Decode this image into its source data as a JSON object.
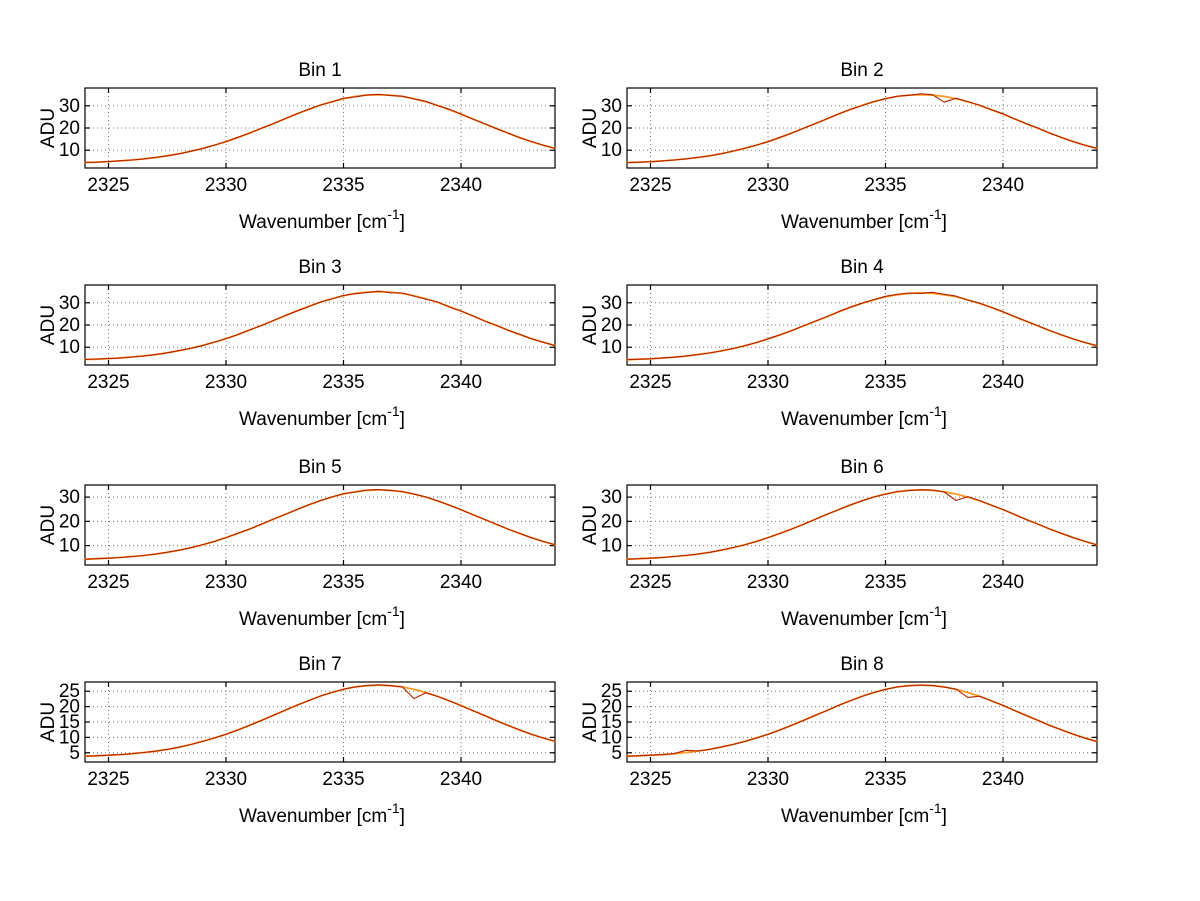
{
  "figure": {
    "background": "#ffffff"
  },
  "labels": {
    "xlabel_main": "Wavenumber [cm",
    "xlabel_sup": "-1",
    "xlabel_close": "]"
  },
  "colors": {
    "data_line": "#b22200",
    "fit_line": "#ff9922",
    "grid": "#7a7a7a",
    "axis": "#000000"
  },
  "x_values": [
    2324,
    2324.5,
    2325,
    2325.5,
    2326,
    2326.5,
    2327,
    2327.5,
    2328,
    2328.5,
    2329,
    2329.5,
    2330,
    2330.5,
    2331,
    2331.5,
    2332,
    2332.5,
    2333,
    2333.5,
    2334,
    2334.5,
    2335,
    2335.5,
    2336,
    2336.5,
    2337,
    2337.5,
    2338,
    2338.5,
    2339,
    2339.5,
    2340,
    2340.5,
    2341,
    2341.5,
    2342,
    2342.5,
    2343,
    2343.5,
    2344
  ],
  "chart_data": [
    {
      "type": "line",
      "title": "Bin 1",
      "xlabel": "Wavenumber [cm^-1]",
      "ylabel": "ADU",
      "xlim": [
        2324,
        2344
      ],
      "ylim": [
        2,
        38
      ],
      "xticks": [
        2325,
        2330,
        2335,
        2340
      ],
      "yticks": [
        10,
        20,
        30
      ],
      "grid": true,
      "x_start": 2324,
      "x_step": 0.5,
      "n_points": 41,
      "series": [
        {
          "name": "fit",
          "color": "#ff9922",
          "values": [
            4.5,
            4.6,
            4.9,
            5.2,
            5.6,
            6.1,
            6.7,
            7.5,
            8.4,
            9.5,
            10.8,
            12.2,
            13.9,
            15.7,
            17.7,
            19.8,
            21.9,
            24.1,
            26.3,
            28.3,
            30.2,
            31.8,
            33.2,
            34.2,
            34.8,
            35.0,
            34.8,
            34.2,
            33.2,
            31.8,
            30.2,
            28.3,
            26.3,
            24.1,
            21.9,
            19.8,
            17.7,
            15.7,
            13.9,
            12.2,
            10.8
          ]
        },
        {
          "name": "data",
          "color": "#b22200",
          "values": [
            4.5,
            4.6,
            4.9,
            5.3,
            5.6,
            6.1,
            6.8,
            7.5,
            8.4,
            9.5,
            10.7,
            12.3,
            13.9,
            15.8,
            17.7,
            19.9,
            21.9,
            24.2,
            26.3,
            28.4,
            30.3,
            31.7,
            33.4,
            34.0,
            34.9,
            35.1,
            34.6,
            34.3,
            33.1,
            32.0,
            30.1,
            28.4,
            26.2,
            24.0,
            22.0,
            19.7,
            17.7,
            15.6,
            13.9,
            12.3,
            10.8
          ]
        }
      ]
    },
    {
      "type": "line",
      "title": "Bin 2",
      "xlabel": "Wavenumber [cm^-1]",
      "ylabel": "ADU",
      "xlim": [
        2324,
        2344
      ],
      "ylim": [
        2,
        38
      ],
      "xticks": [
        2325,
        2330,
        2335,
        2340
      ],
      "yticks": [
        10,
        20,
        30
      ],
      "grid": true,
      "x_start": 2324,
      "x_step": 0.5,
      "n_points": 41,
      "series": [
        {
          "name": "fit",
          "color": "#ff9922",
          "values": [
            4.5,
            4.6,
            4.9,
            5.2,
            5.6,
            6.1,
            6.7,
            7.5,
            8.4,
            9.5,
            10.8,
            12.2,
            13.9,
            15.7,
            17.7,
            19.8,
            21.9,
            24.1,
            26.3,
            28.3,
            30.2,
            31.8,
            33.2,
            34.2,
            34.8,
            35.0,
            34.8,
            34.2,
            33.2,
            31.8,
            30.2,
            28.3,
            26.3,
            24.1,
            21.9,
            19.8,
            17.7,
            15.7,
            13.9,
            12.2,
            10.8
          ]
        },
        {
          "name": "data",
          "color": "#b22200",
          "values": [
            4.4,
            4.6,
            4.8,
            5.2,
            5.6,
            6.1,
            6.8,
            7.4,
            8.4,
            9.6,
            10.8,
            12.3,
            13.8,
            15.8,
            17.6,
            19.8,
            22.0,
            24.1,
            26.3,
            28.4,
            30.1,
            31.9,
            33.2,
            34.3,
            34.7,
            35.4,
            35.0,
            31.6,
            33.4,
            31.9,
            30.3,
            28.2,
            26.4,
            24.0,
            21.9,
            19.9,
            17.6,
            15.7,
            13.8,
            12.2,
            10.8
          ]
        }
      ]
    },
    {
      "type": "line",
      "title": "Bin 3",
      "xlabel": "Wavenumber [cm^-1]",
      "ylabel": "ADU",
      "xlim": [
        2324,
        2344
      ],
      "ylim": [
        2,
        38
      ],
      "xticks": [
        2325,
        2330,
        2335,
        2340
      ],
      "yticks": [
        10,
        20,
        30
      ],
      "grid": true,
      "x_start": 2324,
      "x_step": 0.5,
      "n_points": 41,
      "series": [
        {
          "name": "fit",
          "color": "#ff9922",
          "values": [
            4.5,
            4.6,
            4.9,
            5.2,
            5.6,
            6.1,
            6.7,
            7.5,
            8.4,
            9.5,
            10.8,
            12.2,
            13.9,
            15.7,
            17.7,
            19.8,
            21.9,
            24.1,
            26.3,
            28.3,
            30.2,
            31.8,
            33.2,
            34.2,
            34.8,
            35.0,
            34.8,
            34.2,
            33.2,
            31.8,
            30.2,
            28.3,
            26.3,
            24.1,
            21.9,
            19.8,
            17.7,
            15.7,
            13.9,
            12.2,
            10.8
          ]
        },
        {
          "name": "data",
          "color": "#b22200",
          "values": [
            4.5,
            4.7,
            4.9,
            5.1,
            5.6,
            6.0,
            6.7,
            7.5,
            8.5,
            9.5,
            10.7,
            12.3,
            13.9,
            15.7,
            17.8,
            19.7,
            22.0,
            24.2,
            26.2,
            28.2,
            30.3,
            31.7,
            33.3,
            34.1,
            34.6,
            35.2,
            34.5,
            34.4,
            33.0,
            31.6,
            30.4,
            28.1,
            26.3,
            24.2,
            21.8,
            19.8,
            17.6,
            15.8,
            13.8,
            12.2,
            10.7
          ]
        }
      ]
    },
    {
      "type": "line",
      "title": "Bin 4",
      "xlabel": "Wavenumber [cm^-1]",
      "ylabel": "ADU",
      "xlim": [
        2324,
        2344
      ],
      "ylim": [
        2,
        38
      ],
      "xticks": [
        2325,
        2330,
        2335,
        2340
      ],
      "yticks": [
        10,
        20,
        30
      ],
      "grid": true,
      "x_start": 2324,
      "x_step": 0.5,
      "n_points": 41,
      "series": [
        {
          "name": "fit",
          "color": "#ff9922",
          "values": [
            4.4,
            4.6,
            4.8,
            5.1,
            5.5,
            6.0,
            6.7,
            7.4,
            8.3,
            9.4,
            10.6,
            12.1,
            13.7,
            15.5,
            17.4,
            19.5,
            21.6,
            23.7,
            25.9,
            27.9,
            29.7,
            31.3,
            32.7,
            33.6,
            34.2,
            34.5,
            34.2,
            33.6,
            32.7,
            31.3,
            29.7,
            27.9,
            25.9,
            23.7,
            21.6,
            19.5,
            17.4,
            15.5,
            13.7,
            12.1,
            10.6
          ]
        },
        {
          "name": "data",
          "color": "#b22200",
          "values": [
            4.4,
            4.6,
            4.8,
            5.2,
            5.5,
            6.0,
            6.7,
            7.4,
            8.3,
            9.4,
            10.7,
            12.1,
            13.8,
            15.6,
            17.5,
            19.6,
            21.7,
            23.8,
            26.0,
            28.0,
            29.8,
            31.4,
            32.9,
            33.8,
            34.4,
            34.2,
            34.7,
            33.8,
            33.0,
            31.2,
            29.8,
            27.9,
            26.0,
            23.8,
            21.7,
            19.6,
            17.5,
            15.5,
            13.7,
            12.1,
            10.7
          ]
        }
      ]
    },
    {
      "type": "line",
      "title": "Bin 5",
      "xlabel": "Wavenumber [cm^-1]",
      "ylabel": "ADU",
      "xlim": [
        2324,
        2344
      ],
      "ylim": [
        2,
        35
      ],
      "xticks": [
        2325,
        2330,
        2335,
        2340
      ],
      "yticks": [
        10,
        20,
        30
      ],
      "grid": true,
      "x_start": 2324,
      "x_step": 0.5,
      "n_points": 41,
      "series": [
        {
          "name": "fit",
          "color": "#ff9922",
          "values": [
            4.4,
            4.6,
            4.8,
            5.1,
            5.5,
            5.9,
            6.5,
            7.2,
            8.1,
            9.1,
            10.3,
            11.7,
            13.3,
            15.0,
            16.8,
            18.8,
            20.8,
            22.8,
            24.8,
            26.7,
            28.5,
            30.0,
            31.3,
            32.2,
            32.8,
            33.0,
            32.8,
            32.2,
            31.3,
            30.0,
            28.5,
            26.7,
            24.8,
            22.8,
            20.8,
            18.8,
            16.8,
            15.0,
            13.3,
            11.7,
            10.3
          ]
        },
        {
          "name": "data",
          "color": "#b22200",
          "values": [
            4.4,
            4.6,
            4.8,
            5.1,
            5.5,
            5.9,
            6.5,
            7.3,
            8.1,
            9.1,
            10.4,
            11.7,
            13.3,
            15.1,
            16.8,
            18.8,
            20.9,
            22.8,
            24.8,
            26.8,
            28.5,
            30.1,
            31.4,
            32.1,
            32.9,
            33.1,
            32.7,
            32.3,
            31.2,
            30.1,
            28.5,
            26.7,
            24.8,
            22.8,
            20.8,
            18.8,
            16.8,
            15.0,
            13.2,
            11.7,
            10.4
          ]
        }
      ]
    },
    {
      "type": "line",
      "title": "Bin 6",
      "xlabel": "Wavenumber [cm^-1]",
      "ylabel": "ADU",
      "xlim": [
        2324,
        2344
      ],
      "ylim": [
        2,
        35
      ],
      "xticks": [
        2325,
        2330,
        2335,
        2340
      ],
      "yticks": [
        10,
        20,
        30
      ],
      "grid": true,
      "x_start": 2324,
      "x_step": 0.5,
      "n_points": 41,
      "series": [
        {
          "name": "fit",
          "color": "#ff9922",
          "values": [
            4.4,
            4.6,
            4.8,
            5.1,
            5.5,
            5.9,
            6.5,
            7.2,
            8.1,
            9.1,
            10.3,
            11.7,
            13.3,
            15.0,
            16.8,
            18.8,
            20.8,
            22.8,
            24.8,
            26.7,
            28.5,
            30.0,
            31.3,
            32.2,
            32.8,
            33.0,
            32.8,
            32.2,
            31.3,
            30.0,
            28.5,
            26.7,
            24.8,
            22.8,
            20.8,
            18.8,
            16.8,
            15.0,
            13.3,
            11.7,
            10.3
          ]
        },
        {
          "name": "data",
          "color": "#b22200",
          "values": [
            4.4,
            4.6,
            4.8,
            5.1,
            5.5,
            5.9,
            6.5,
            7.2,
            8.1,
            9.2,
            10.3,
            11.7,
            13.3,
            15.0,
            16.8,
            18.7,
            20.8,
            22.9,
            24.8,
            26.8,
            28.5,
            30.1,
            31.2,
            32.3,
            32.7,
            33.0,
            32.9,
            32.1,
            28.6,
            30.2,
            28.6,
            26.7,
            24.9,
            22.8,
            20.7,
            18.8,
            16.8,
            15.0,
            13.2,
            11.7,
            10.3
          ]
        }
      ]
    },
    {
      "type": "line",
      "title": "Bin 7",
      "xlabel": "Wavenumber [cm^-1]",
      "ylabel": "ADU",
      "xlim": [
        2324,
        2344
      ],
      "ylim": [
        2,
        28
      ],
      "xticks": [
        2325,
        2330,
        2335,
        2340
      ],
      "yticks": [
        5,
        10,
        15,
        20,
        25
      ],
      "grid": true,
      "x_start": 2324,
      "x_step": 0.5,
      "n_points": 41,
      "series": [
        {
          "name": "fit",
          "color": "#ff9922",
          "values": [
            3.9,
            4.0,
            4.2,
            4.4,
            4.7,
            5.1,
            5.5,
            6.1,
            6.8,
            7.7,
            8.7,
            9.8,
            11.0,
            12.4,
            13.9,
            15.5,
            17.1,
            18.7,
            20.4,
            21.9,
            23.4,
            24.6,
            25.6,
            26.4,
            26.8,
            27.0,
            26.8,
            26.4,
            25.6,
            24.6,
            23.4,
            21.9,
            20.4,
            18.7,
            17.1,
            15.5,
            13.9,
            12.4,
            11.0,
            9.8,
            8.7
          ]
        },
        {
          "name": "data",
          "color": "#b22200",
          "values": [
            3.9,
            4.0,
            4.2,
            4.4,
            4.7,
            5.1,
            5.5,
            6.1,
            6.8,
            7.7,
            8.7,
            9.8,
            11.0,
            12.4,
            13.9,
            15.5,
            17.1,
            18.8,
            20.4,
            21.9,
            23.4,
            24.6,
            25.7,
            26.4,
            26.9,
            27.1,
            26.8,
            26.4,
            22.6,
            24.5,
            23.3,
            21.9,
            20.3,
            18.7,
            17.1,
            15.4,
            13.9,
            12.4,
            11.0,
            9.8,
            8.7
          ]
        }
      ]
    },
    {
      "type": "line",
      "title": "Bin 8",
      "xlabel": "Wavenumber [cm^-1]",
      "ylabel": "ADU",
      "xlim": [
        2324,
        2344
      ],
      "ylim": [
        2,
        28
      ],
      "xticks": [
        2325,
        2330,
        2335,
        2340
      ],
      "yticks": [
        5,
        10,
        15,
        20,
        25
      ],
      "grid": true,
      "x_start": 2324,
      "x_step": 0.5,
      "n_points": 41,
      "series": [
        {
          "name": "fit",
          "color": "#ff9922",
          "values": [
            3.9,
            4.0,
            4.2,
            4.4,
            4.7,
            5.1,
            5.5,
            6.1,
            6.8,
            7.7,
            8.7,
            9.8,
            11.0,
            12.4,
            13.9,
            15.5,
            17.1,
            18.7,
            20.4,
            21.9,
            23.4,
            24.6,
            25.6,
            26.4,
            26.8,
            27.0,
            26.8,
            26.4,
            25.6,
            24.6,
            23.4,
            21.9,
            20.4,
            18.7,
            17.1,
            15.5,
            13.9,
            12.4,
            11.0,
            9.8,
            8.7
          ]
        },
        {
          "name": "data",
          "color": "#b22200",
          "values": [
            3.9,
            4.0,
            4.2,
            4.4,
            4.7,
            5.8,
            5.6,
            6.1,
            6.9,
            7.7,
            8.6,
            9.8,
            11.0,
            12.4,
            13.9,
            15.5,
            17.1,
            18.7,
            20.4,
            21.9,
            23.3,
            24.6,
            25.6,
            26.4,
            26.8,
            27.0,
            26.9,
            26.3,
            25.7,
            23.0,
            23.4,
            21.9,
            20.4,
            18.7,
            17.0,
            15.5,
            13.8,
            12.4,
            11.0,
            9.7,
            8.6
          ]
        }
      ]
    }
  ]
}
